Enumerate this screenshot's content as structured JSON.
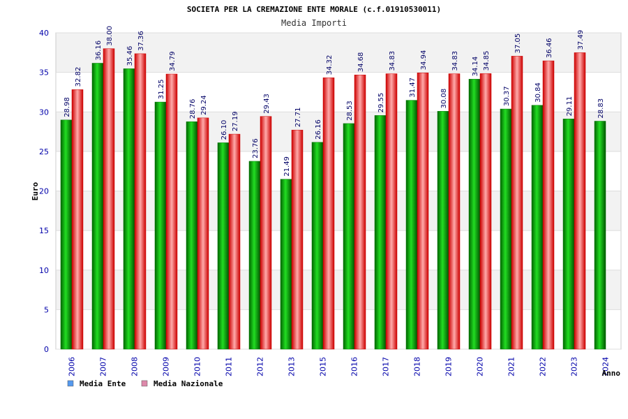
{
  "chart_data": {
    "type": "bar",
    "title": "SOCIETA PER LA CREMAZIONE ENTE MORALE (c.f.01910530011)",
    "subtitle": "Media Importi",
    "ylabel": "Euro",
    "xlabel": "Anno",
    "ylim": [
      0,
      40
    ],
    "yticks": [
      0,
      5,
      10,
      15,
      20,
      25,
      30,
      35,
      40
    ],
    "grid": true,
    "legend_position": "bottom-left",
    "categories": [
      "2006",
      "2007",
      "2008",
      "2009",
      "2010",
      "2011",
      "2012",
      "2013",
      "2015",
      "2016",
      "2017",
      "2018",
      "2019",
      "2020",
      "2021",
      "2022",
      "2023",
      "2024"
    ],
    "series": [
      {
        "name": "Media Ente",
        "color": "#00a000",
        "legend_color": "#5599ee",
        "values": [
          28.98,
          36.16,
          35.46,
          31.25,
          28.76,
          26.1,
          23.76,
          21.49,
          26.16,
          28.53,
          29.55,
          31.47,
          30.08,
          34.14,
          30.37,
          30.84,
          29.11,
          28.83
        ]
      },
      {
        "name": "Media Nazionale",
        "color": "#e83030",
        "legend_color": "#dd88aa",
        "values": [
          32.82,
          38.0,
          37.36,
          34.79,
          29.24,
          27.19,
          29.43,
          27.71,
          34.32,
          34.68,
          34.83,
          34.94,
          34.83,
          34.85,
          37.05,
          36.46,
          37.49,
          null
        ]
      }
    ]
  }
}
